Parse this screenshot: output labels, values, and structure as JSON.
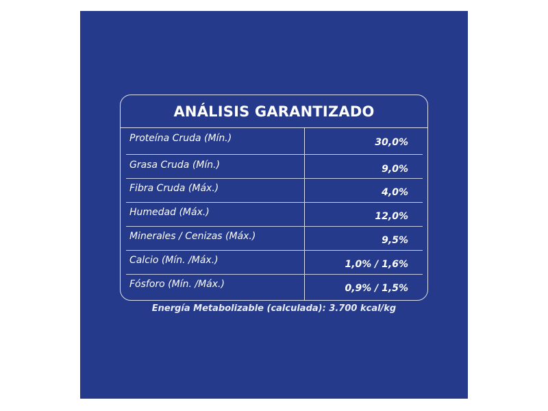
{
  "analysis": {
    "title": "ANÁLISIS GARANTIZADO",
    "rows": [
      {
        "label": "Proteína Cruda (Mín.)",
        "value": "30,0%"
      },
      {
        "label": "Grasa Cruda (Mín.)",
        "value": "9,0%"
      },
      {
        "label": "Fibra Cruda (Máx.)",
        "value": "4,0%"
      },
      {
        "label": "Humedad (Máx.)",
        "value": "12,0%"
      },
      {
        "label": "Minerales / Cenizas (Máx.)",
        "value": "9,5%"
      },
      {
        "label": "Calcio (Mín. /Máx.)",
        "value": "1,0% / 1,6%"
      },
      {
        "label": "Fósforo (Mín. /Máx.)",
        "value": "0,9% / 1,5%"
      }
    ],
    "footnote": "Energía Metabolizable (calculada): 3.700 kcal/kg"
  },
  "colors": {
    "panel_background": "#253a8a",
    "text": "#ffffff",
    "lines": "#dfe3ef"
  }
}
